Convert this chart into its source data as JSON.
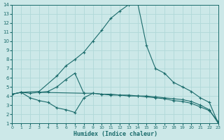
{
  "xlabel": "Humidex (Indice chaleur)",
  "xlim": [
    0,
    23
  ],
  "ylim": [
    1,
    14
  ],
  "xticks": [
    0,
    1,
    2,
    3,
    4,
    5,
    6,
    7,
    8,
    9,
    10,
    11,
    12,
    13,
    14,
    15,
    16,
    17,
    18,
    19,
    20,
    21,
    22,
    23
  ],
  "yticks": [
    1,
    2,
    3,
    4,
    5,
    6,
    7,
    8,
    9,
    10,
    11,
    12,
    13,
    14
  ],
  "bg_color": "#cce8e8",
  "grid_color": "#b0d8d8",
  "line_color": "#1a6b6b",
  "series": [
    {
      "x": [
        0,
        1,
        3,
        5,
        6,
        7,
        8,
        9,
        10,
        11,
        12,
        13,
        14,
        15,
        16,
        17,
        18,
        19,
        20,
        21,
        22,
        23
      ],
      "y": [
        4.2,
        4.4,
        4.5,
        6.2,
        7.3,
        8.0,
        8.8,
        10.0,
        11.2,
        12.5,
        13.3,
        14.0,
        14.2,
        9.5,
        7.0,
        6.5,
        5.5,
        5.0,
        4.5,
        3.8,
        3.3,
        1.0
      ]
    },
    {
      "x": [
        0,
        1,
        2,
        3,
        8,
        9,
        10,
        11,
        12,
        13,
        14,
        15,
        16,
        17,
        18,
        19,
        20,
        21,
        22,
        23
      ],
      "y": [
        4.2,
        4.4,
        4.3,
        4.4,
        4.3,
        4.3,
        4.2,
        4.2,
        4.1,
        4.1,
        4.0,
        4.0,
        3.9,
        3.8,
        3.7,
        3.6,
        3.4,
        3.0,
        2.5,
        1.0
      ]
    },
    {
      "x": [
        0,
        1,
        2,
        3,
        4,
        5,
        6,
        7,
        8,
        9,
        10,
        11,
        12,
        13,
        14,
        15,
        16,
        17,
        18,
        19,
        20,
        21,
        22,
        23
      ],
      "y": [
        4.2,
        4.4,
        3.8,
        3.5,
        3.3,
        2.7,
        2.5,
        2.2,
        3.8,
        4.3,
        4.2,
        4.1,
        4.1,
        4.0,
        4.0,
        3.9,
        3.8,
        3.7,
        3.5,
        3.4,
        3.2,
        2.8,
        2.4,
        1.2
      ]
    },
    {
      "x": [
        3,
        4,
        5,
        6,
        7,
        8
      ],
      "y": [
        4.4,
        4.5,
        5.0,
        5.8,
        6.5,
        4.3
      ]
    }
  ]
}
